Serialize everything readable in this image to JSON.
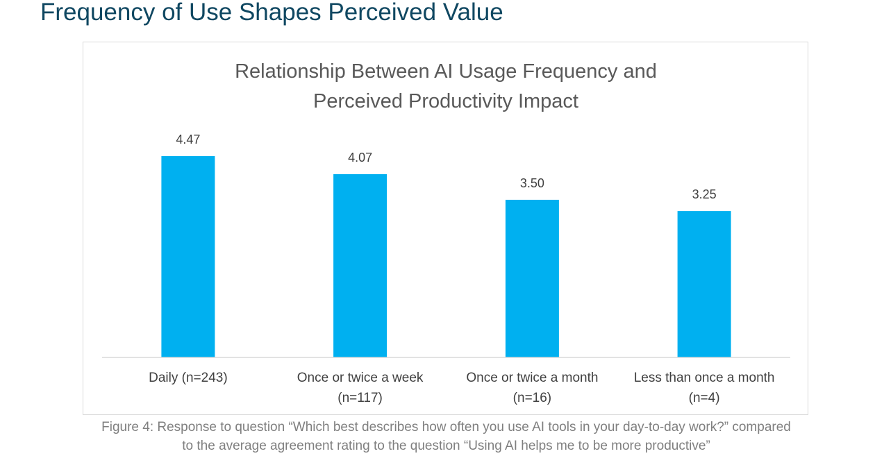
{
  "page": {
    "heading": "Frequency of Use Shapes Perceived Value",
    "caption_lines": [
      "Figure 4: Response to question “Which best describes how often you use AI tools in your day-to-day work?” compared",
      "to the average agreement rating to the question “Using AI helps me to be more productive”"
    ]
  },
  "colors": {
    "bar": "#00b0f0",
    "heading": "#0f4761",
    "axis": "#d9d9d9"
  },
  "chart_data": {
    "type": "bar",
    "title": "Relationship Between AI Usage Frequency and Perceived Productivity Impact",
    "title_lines": [
      "Relationship Between AI Usage Frequency and",
      "Perceived Productivity Impact"
    ],
    "categories": [
      "Daily (n=243)",
      "Once or twice a week (n=117)",
      "Once or twice a month (n=16)",
      "Less than once a month (n=4)"
    ],
    "category_lines": [
      [
        "Daily (n=243)"
      ],
      [
        "Once or twice a week",
        "(n=117)"
      ],
      [
        "Once or twice a month",
        "(n=16)"
      ],
      [
        "Less than once a month",
        "(n=4)"
      ]
    ],
    "values": [
      4.47,
      4.07,
      3.5,
      3.25
    ],
    "value_labels": [
      "4.47",
      "4.07",
      "3.50",
      "3.25"
    ],
    "xlabel": "",
    "ylabel": "",
    "ylim": [
      0,
      4.7
    ],
    "grid": false,
    "legend": false
  }
}
